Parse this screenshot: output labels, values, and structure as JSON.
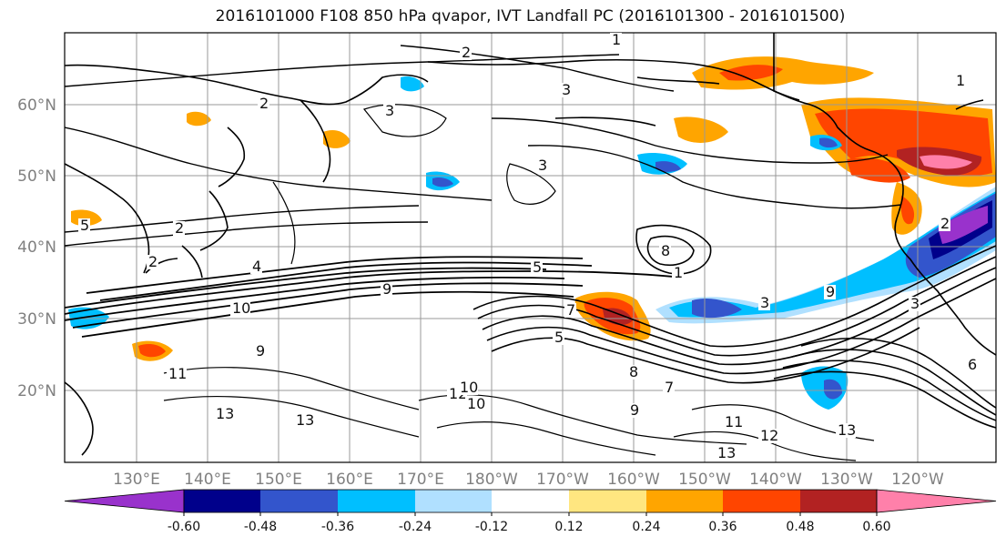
{
  "title": "2016101000 F108 850 hPa qvapor, IVT Landfall PC (2016101300 - 2016101500)",
  "lat_labels": [
    "60°N",
    "50°N",
    "40°N",
    "30°N",
    "20°N"
  ],
  "lon_labels": [
    "130°E",
    "140°E",
    "150°E",
    "160°E",
    "170°E",
    "180°W",
    "170°W",
    "160°W",
    "150°W",
    "140°W",
    "130°W",
    "120°W"
  ],
  "colorbar": {
    "ticks": [
      "-0.60",
      "-0.48",
      "-0.36",
      "-0.24",
      "-0.12",
      "0.12",
      "0.24",
      "0.36",
      "0.48",
      "0.60"
    ],
    "colors": [
      "#9932cc",
      "#00008b",
      "#3355cc",
      "#00bfff",
      "#b0e0ff",
      "#ffffff",
      "#ffe680",
      "#ffa500",
      "#ff4500",
      "#b22222",
      "#ff80aa"
    ]
  },
  "contour_labels": [
    "1",
    "2",
    "3",
    "2",
    "3",
    "3",
    "2",
    "5",
    "2",
    "4",
    "9",
    "10",
    "11",
    "13",
    "12",
    "13",
    "10",
    "9",
    "8",
    "7",
    "5",
    "5",
    "9",
    "8",
    "7",
    "3",
    "1",
    "11",
    "12",
    "13",
    "13",
    "10",
    "9",
    "6",
    "1",
    "3",
    "2"
  ]
}
